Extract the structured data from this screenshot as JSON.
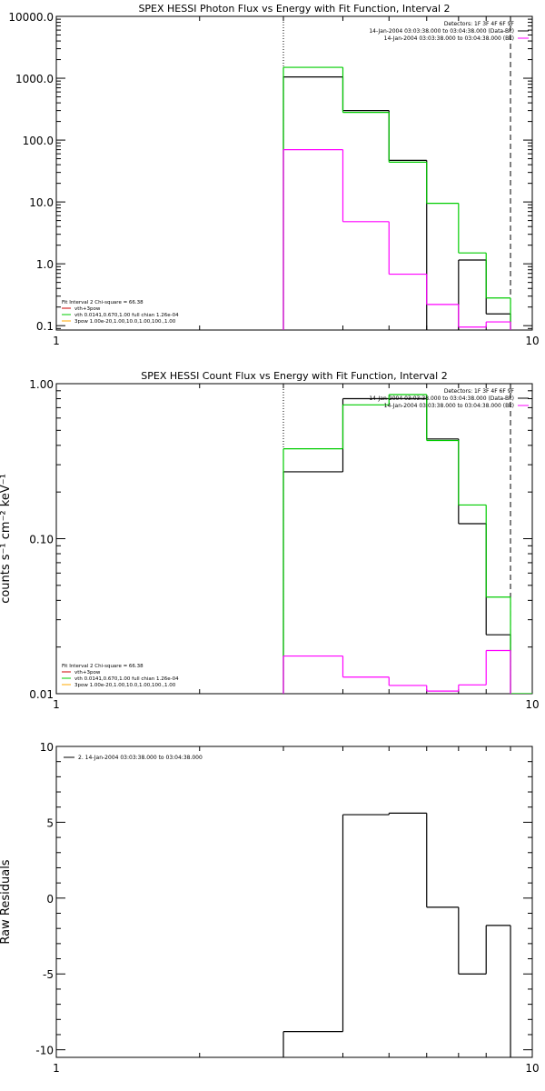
{
  "chart_data": [
    {
      "type": "line",
      "title": "SPEX HESSI Photon Flux vs Energy with Fit Function, Interval 2",
      "xlabel": "",
      "ylabel": "",
      "xscale": "log",
      "yscale": "log",
      "xlim": [
        1,
        10
      ],
      "ylim": [
        0.085,
        10000
      ],
      "xticks": [
        {
          "v": 1,
          "t": "1"
        },
        {
          "v": 10,
          "t": "10"
        }
      ],
      "yticks": [
        {
          "v": 0.1,
          "t": "0.1"
        },
        {
          "v": 1,
          "t": "1.0"
        },
        {
          "v": 10,
          "t": "10.0"
        },
        {
          "v": 100,
          "t": "100.0"
        },
        {
          "v": 1000,
          "t": "1000.0"
        },
        {
          "v": 10000,
          "t": "10000.0"
        }
      ],
      "vlines": [
        {
          "x": 3,
          "style": "dotted"
        },
        {
          "x": 9,
          "style": "dashed"
        }
      ],
      "legend_topright": [
        {
          "text": "Detectors: 1F 3F 4F 6F 9F",
          "color": ""
        },
        {
          "text": "14-Jan-2004 03:03:38.000 to 03:04:38.000 (Data-Bk)",
          "color": "#000000"
        },
        {
          "text": "14-Jan-2004 03:03:38.000 to 03:04:38.000 (Bk)",
          "color": "#ff00ff"
        }
      ],
      "legend_bottomleft": [
        {
          "text": "Fit Interval 2   Chi-square = 66.38",
          "color": ""
        },
        {
          "text": "vth+3pow",
          "color": "#cc0000"
        },
        {
          "text": "vth 0.0141,0.670,1.00  full chian 1.26e-04",
          "color": "#00cc00"
        },
        {
          "text": "3pow 1.00e-20,1.00,10.0,1.00,100.,1.00",
          "color": "#ffaa00"
        }
      ],
      "edges": [
        3,
        4,
        5,
        6,
        7,
        8,
        9,
        10
      ],
      "series": [
        {
          "color": "#000000",
          "values": [
            1050,
            300,
            47,
            null,
            1.15,
            0.155,
            null
          ]
        },
        {
          "color": "#00cc00",
          "values": [
            1500,
            280,
            44,
            9.5,
            1.5,
            0.28,
            null
          ]
        },
        {
          "color": "#ff00ff",
          "values": [
            70,
            4.8,
            0.68,
            0.22,
            0.095,
            0.115,
            null
          ]
        }
      ]
    },
    {
      "type": "line",
      "title": "SPEX HESSI Count Flux vs Energy with Fit Function, Interval 2",
      "xlabel": "",
      "ylabel": "counts s⁻¹ cm⁻² keV⁻¹",
      "xscale": "log",
      "yscale": "log",
      "xlim": [
        1,
        10
      ],
      "ylim": [
        0.01,
        1
      ],
      "xticks": [
        {
          "v": 1,
          "t": "1"
        },
        {
          "v": 10,
          "t": "10"
        }
      ],
      "yticks": [
        {
          "v": 0.01,
          "t": "0.01"
        },
        {
          "v": 0.1,
          "t": "0.10"
        },
        {
          "v": 1,
          "t": "1.00"
        }
      ],
      "vlines": [
        {
          "x": 3,
          "style": "dotted"
        },
        {
          "x": 9,
          "style": "dashed"
        }
      ],
      "legend_topright": [
        {
          "text": "Detectors: 1F 3F 4F 6F 9F",
          "color": ""
        },
        {
          "text": "14-Jan-2004 03:03:38.000 to 03:04:38.000 (Data-Bk)",
          "color": "#000000"
        },
        {
          "text": "14-Jan-2004 03:03:38.000 to 03:04:38.000 (Bk)",
          "color": "#ff00ff"
        }
      ],
      "legend_bottomleft": [
        {
          "text": "Fit Interval 2   Chi-square = 66.38",
          "color": ""
        },
        {
          "text": "vth+3pow",
          "color": "#cc0000"
        },
        {
          "text": "vth 0.0141,0.670,1.00  full chian 1.26e-04",
          "color": "#00cc00"
        },
        {
          "text": "3pow 1.00e-20,1.00,10.0,1.00,100.,1.00",
          "color": "#ffaa00"
        }
      ],
      "edges": [
        3,
        4,
        5,
        6,
        7,
        8,
        9,
        10
      ],
      "series": [
        {
          "color": "#000000",
          "values": [
            0.27,
            0.8,
            0.8,
            0.44,
            0.125,
            0.024,
            null
          ]
        },
        {
          "color": "#00cc00",
          "values": [
            0.38,
            0.73,
            0.85,
            0.43,
            0.165,
            0.042,
            0.01
          ]
        },
        {
          "color": "#ff00ff",
          "values": [
            0.0175,
            0.0128,
            0.0113,
            0.0104,
            0.0114,
            0.019,
            null
          ]
        }
      ]
    },
    {
      "type": "line",
      "title": "",
      "xlabel": "",
      "ylabel": "Raw Residuals",
      "xscale": "log",
      "yscale": "linear",
      "xlim": [
        1,
        10
      ],
      "ylim": [
        -10.5,
        10
      ],
      "xticks": [
        {
          "v": 1,
          "t": "1"
        },
        {
          "v": 10,
          "t": "10"
        }
      ],
      "yticks": [
        {
          "v": -10,
          "t": "-10"
        },
        {
          "v": -5,
          "t": "-5"
        },
        {
          "v": 0,
          "t": "0"
        },
        {
          "v": 5,
          "t": "5"
        },
        {
          "v": 10,
          "t": "10"
        }
      ],
      "vlines": [],
      "legend_topright": [],
      "legend_topleft": [
        {
          "text": "2. 14-Jan-2004 03:03:38.000 to 03:04:38.000",
          "color": "#000000"
        }
      ],
      "legend_bottomleft": [],
      "edges": [
        3,
        4,
        5,
        6,
        7,
        8,
        9
      ],
      "series": [
        {
          "color": "#000000",
          "values": [
            -8.8,
            5.5,
            5.6,
            -0.6,
            -5.0,
            -1.8
          ]
        }
      ]
    }
  ]
}
